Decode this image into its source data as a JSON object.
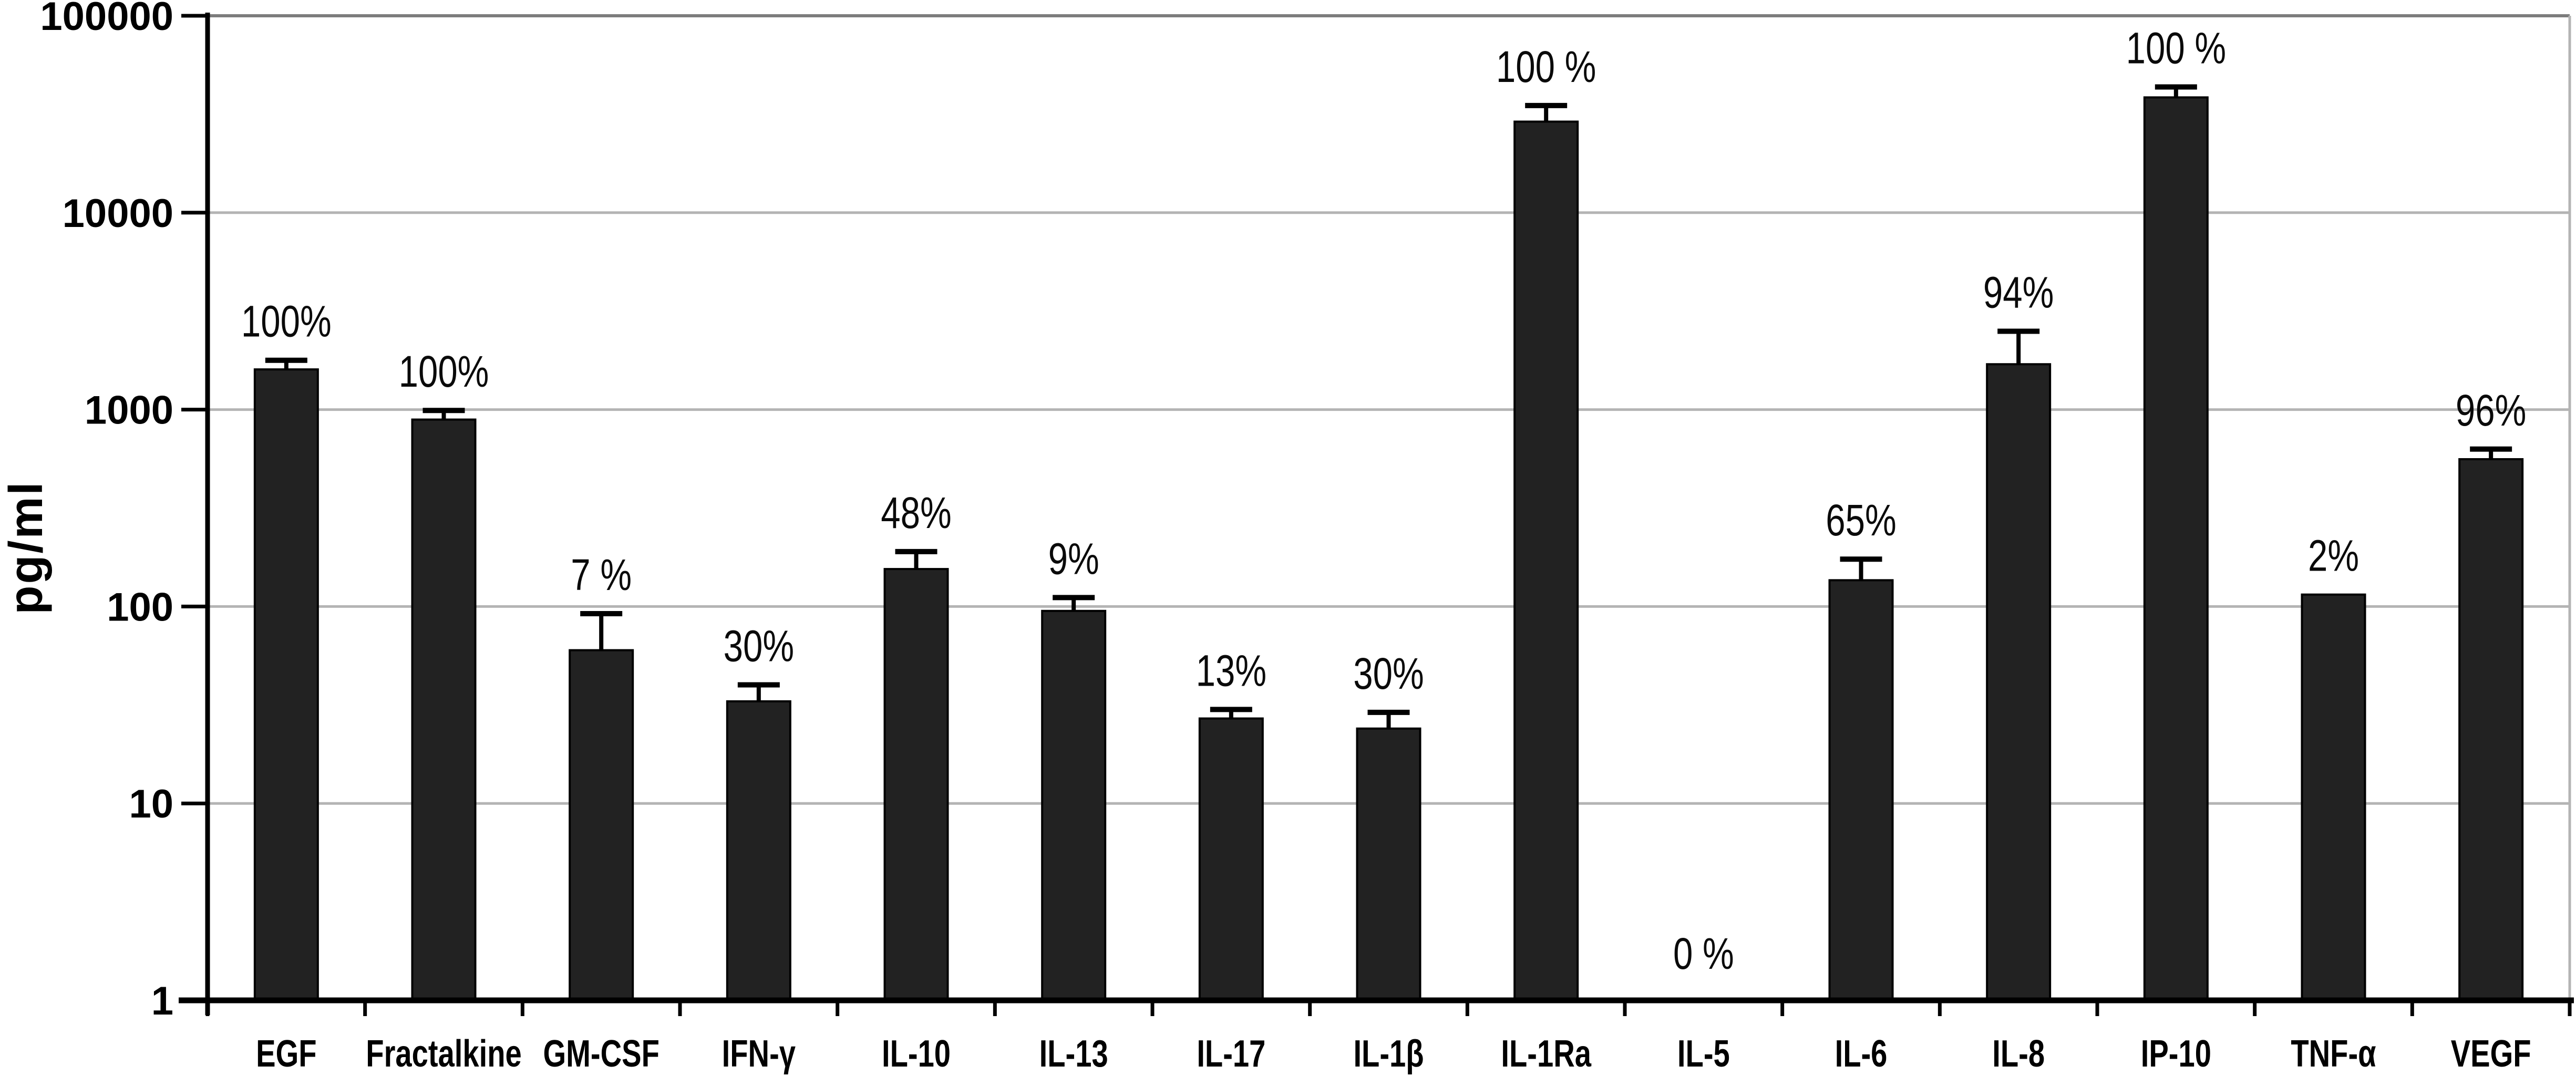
{
  "chart_data": {
    "type": "bar",
    "title": "",
    "xlabel": "",
    "ylabel": "pg/ml",
    "yscale": "log",
    "ylim": [
      1,
      100000
    ],
    "yticks": [
      1,
      10,
      100,
      1000,
      10000,
      100000
    ],
    "ytick_labels": [
      "1",
      "10",
      "100",
      "1000",
      "10000",
      "100000"
    ],
    "grid": "horizontal gridlines at each decade",
    "legend_position": "none",
    "bar_color": "#222222",
    "gridline_color": "#b4b4b4",
    "categories": [
      "EGF",
      "Fractalkine",
      "GM-CSF",
      "IFN-γ",
      "IL-10",
      "IL-13",
      "IL-17",
      "IL-1β",
      "IL-1Ra",
      "IL-5",
      "IL-6",
      "IL-8",
      "IP-10",
      "TNF-α",
      "VEGF"
    ],
    "values": [
      1600,
      890,
      60,
      33,
      155,
      95,
      27,
      24,
      29000,
      0,
      136,
      1700,
      38500,
      115,
      560
    ],
    "error_upper": [
      1780,
      990,
      92,
      40,
      190,
      111,
      30,
      29,
      35000,
      null,
      174,
      2500,
      43500,
      null,
      630
    ],
    "percent_labels": [
      "100%",
      "100%",
      "7 %",
      "30%",
      "48%",
      "9%",
      "13%",
      "30%",
      "100 %",
      "0 %",
      "65%",
      "94%",
      "100 %",
      "2%",
      "96%"
    ],
    "units": "pg/ml"
  }
}
